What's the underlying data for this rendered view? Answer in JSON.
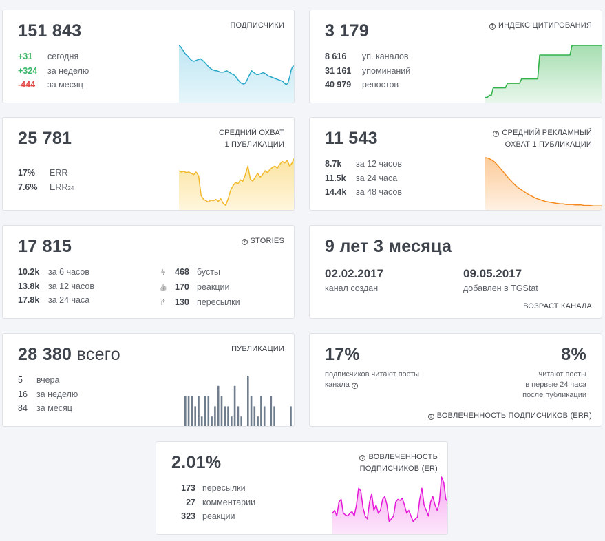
{
  "subscribers": {
    "value": "151 843",
    "title": "ПОДПИСЧИКИ",
    "rows": [
      {
        "num": "+31",
        "label": "сегодня"
      },
      {
        "num": "+324",
        "label": "за неделю"
      },
      {
        "num": "-444",
        "label": "за месяц"
      }
    ],
    "trend": [
      88,
      86,
      82,
      78,
      74,
      72,
      69,
      66,
      64,
      63,
      64,
      65,
      66,
      67,
      65,
      63,
      60,
      57,
      54,
      52,
      50,
      49,
      48,
      48,
      47,
      46,
      46,
      46,
      47,
      48,
      46,
      45,
      43,
      42,
      40,
      36,
      33,
      30,
      28,
      27,
      28,
      32,
      38,
      43,
      48,
      46,
      44,
      42,
      42,
      43,
      44,
      45,
      44,
      42,
      40,
      39,
      38,
      37,
      36,
      35,
      34,
      33,
      32,
      31,
      28,
      26,
      29,
      38,
      50,
      55,
      56
    ]
  },
  "citation": {
    "value": "3 179",
    "title": "ИНДЕКС ЦИТИРОВАНИЯ",
    "rows": [
      {
        "num": "8 616",
        "label": "уп. каналов"
      },
      {
        "num": "31 161",
        "label": "упоминаний"
      },
      {
        "num": "40 979",
        "label": "репостов"
      }
    ],
    "trend": [
      5,
      5,
      8,
      8,
      18,
      18,
      18,
      18,
      18,
      18,
      18,
      24,
      24,
      24,
      24,
      24,
      24,
      24,
      30,
      30,
      30,
      30,
      30,
      30,
      30,
      30,
      30,
      62,
      62,
      62,
      62,
      62,
      62,
      62,
      62,
      62,
      62,
      62,
      62,
      62,
      62,
      62,
      62,
      75,
      75,
      75,
      75,
      75,
      75,
      75,
      75,
      75,
      75,
      75,
      75,
      75,
      75,
      75,
      75
    ]
  },
  "reach": {
    "value": "25 781",
    "title_line1": "СРЕДНИЙ ОХВАТ",
    "title_line2": "1 ПУБЛИКАЦИИ",
    "rows": [
      {
        "num": "17%",
        "label": "ERR"
      },
      {
        "num": "7.6%",
        "label": "ERR",
        "sub": "24"
      }
    ],
    "trend": [
      58,
      56,
      57,
      55,
      56,
      54,
      52,
      56,
      50,
      20,
      14,
      12,
      10,
      13,
      12,
      14,
      11,
      15,
      8,
      5,
      15,
      28,
      35,
      40,
      38,
      44,
      42,
      52,
      65,
      45,
      42,
      48,
      54,
      48,
      52,
      58,
      55,
      60,
      63,
      65,
      62,
      68,
      72,
      70,
      74,
      65,
      70,
      78
    ]
  },
  "ad_reach": {
    "value": "11 543",
    "title_line1": "СРЕДНИЙ РЕКЛАМНЫЙ",
    "title_line2": "ОХВАТ 1 ПУБЛИКАЦИИ",
    "rows": [
      {
        "num": "8.7k",
        "label": "за 12 часов"
      },
      {
        "num": "11.5k",
        "label": "за 24 часа"
      },
      {
        "num": "14.4k",
        "label": "за 48 часов"
      }
    ],
    "trend": [
      100,
      99,
      96,
      92,
      86,
      79,
      72,
      65,
      58,
      52,
      46,
      41,
      37,
      33,
      29,
      26,
      23,
      20,
      18,
      16,
      14,
      13,
      12,
      11,
      10,
      9,
      9,
      8,
      8,
      8,
      7,
      7,
      7,
      6,
      6,
      6,
      5,
      5,
      5,
      5
    ]
  },
  "stories": {
    "value": "17 815",
    "title": "STORIES",
    "left_rows": [
      {
        "num": "10.2k",
        "label": "за 6 часов"
      },
      {
        "num": "13.8k",
        "label": "за 12 часов"
      },
      {
        "num": "17.8k",
        "label": "за 24 часа"
      }
    ],
    "right_rows": [
      {
        "icon": "ϟ",
        "num": "468",
        "label": "бусты"
      },
      {
        "icon": "👍",
        "num": "170",
        "label": "реакции"
      },
      {
        "icon": "↱",
        "num": "130",
        "label": "пересылки"
      }
    ]
  },
  "age": {
    "value": "9 лет 3 месяца",
    "created_date": "02.02.2017",
    "created_label": "канал создан",
    "added_date": "09.05.2017",
    "added_label": "добавлен в TGStat",
    "title": "ВОЗРАСТ КАНАЛА"
  },
  "posts": {
    "value": "28 380",
    "unit": "всего",
    "title": "ПУБЛИКАЦИИ",
    "rows": [
      {
        "num": "5",
        "label": "вчера"
      },
      {
        "num": "16",
        "label": "за неделю"
      },
      {
        "num": "84",
        "label": "за месяц"
      }
    ],
    "bars": [
      3,
      3,
      3,
      2,
      3,
      1,
      3,
      3,
      1,
      2,
      4,
      3,
      2,
      2,
      1,
      4,
      2,
      1,
      0,
      5,
      3,
      2,
      1,
      3,
      2,
      0,
      3,
      2,
      0,
      0,
      0,
      0,
      2
    ]
  },
  "err": {
    "left_value": "17%",
    "left_label_line1": "подписчиков читают посты",
    "left_label_line2": "канала",
    "right_value": "8%",
    "right_label_line1": "читают посты",
    "right_label_line2": "в первые 24 часа",
    "right_label_line3": "после публикации",
    "title": "ВОВЛЕЧЕННОСТЬ ПОДПИСЧИКОВ (ERR)"
  },
  "er": {
    "value": "2.01%",
    "title_line1": "ВОВЛЕЧЕННОСТЬ",
    "title_line2": "ПОДПИСЧИКОВ (ER)",
    "rows": [
      {
        "num": "173",
        "label": "пересылки"
      },
      {
        "num": "27",
        "label": "комментарии"
      },
      {
        "num": "323",
        "label": "реакции"
      }
    ],
    "trend": [
      35,
      40,
      30,
      55,
      60,
      35,
      32,
      30,
      35,
      38,
      30,
      50,
      80,
      75,
      45,
      30,
      25,
      55,
      70,
      40,
      50,
      35,
      40,
      60,
      65,
      50,
      20,
      25,
      30,
      55,
      60,
      58,
      62,
      50,
      35,
      40,
      30,
      20,
      25,
      28,
      60,
      80,
      50,
      40,
      30,
      55,
      65,
      50,
      40,
      55,
      100,
      90,
      60,
      55
    ]
  }
}
